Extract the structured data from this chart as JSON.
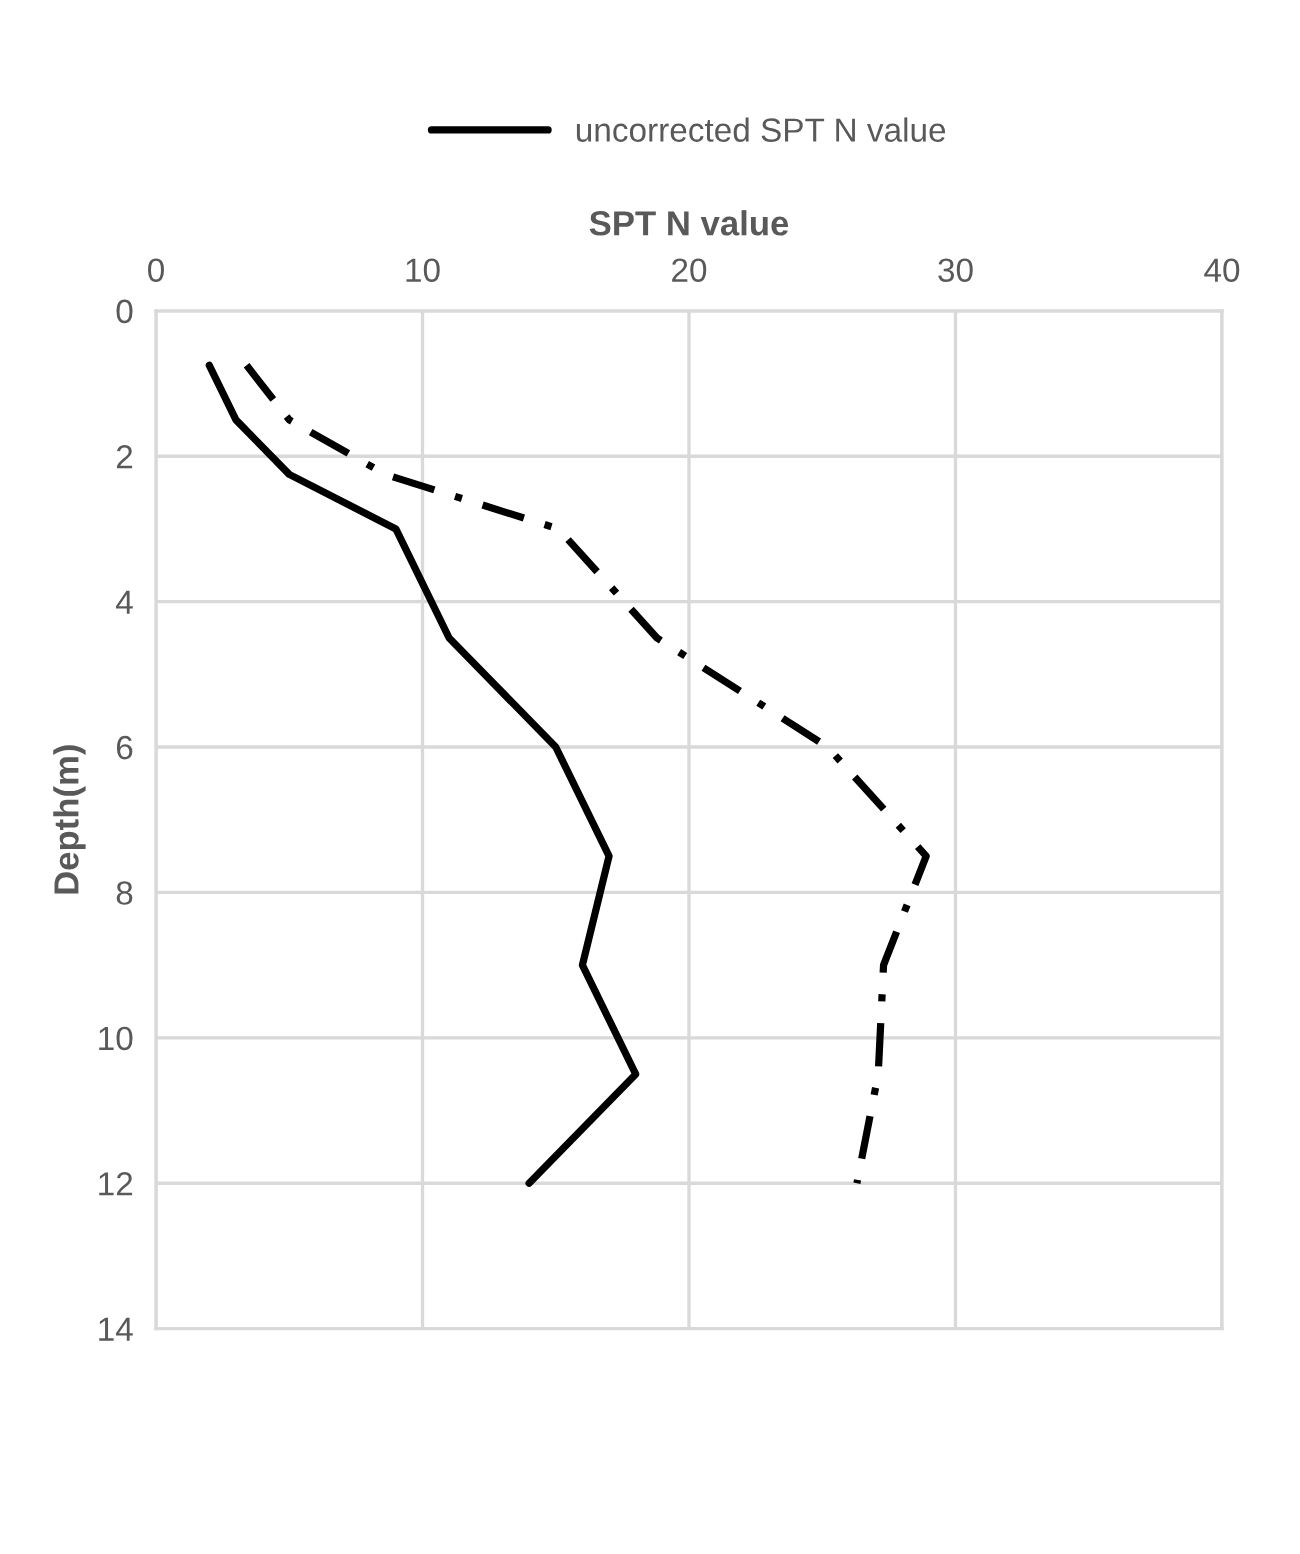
{
  "chart_data": {
    "type": "line",
    "xlabel": "SPT N value",
    "ylabel": "Depth(m)",
    "series": [
      {
        "name": "uncorrected SPT N value",
        "color": "#000000",
        "line_style": "solid",
        "x": [
          2,
          3,
          5,
          9,
          11,
          15,
          17,
          16,
          18,
          14
        ],
        "values": [
          0.75,
          1.5,
          2.25,
          3,
          4.5,
          6,
          7.5,
          9,
          10.5,
          12
        ]
      },
      {
        "color": "#000000",
        "line_style": "dashdot",
        "x": [
          3.4,
          5,
          8.6,
          15.1,
          18.8,
          25.2,
          28.9,
          27.3,
          27.1,
          26.3
        ],
        "values": [
          0.75,
          1.5,
          2.25,
          3,
          4.5,
          6,
          7.5,
          9,
          10.5,
          12
        ]
      }
    ],
    "xlim": [
      0,
      40
    ],
    "xticks": [
      0,
      10,
      20,
      30,
      40
    ],
    "ylim": [
      14,
      0
    ],
    "yticks": [
      0,
      2,
      4,
      6,
      8,
      10,
      12,
      14
    ],
    "grid": true,
    "legend": "top",
    "marker": "none"
  }
}
